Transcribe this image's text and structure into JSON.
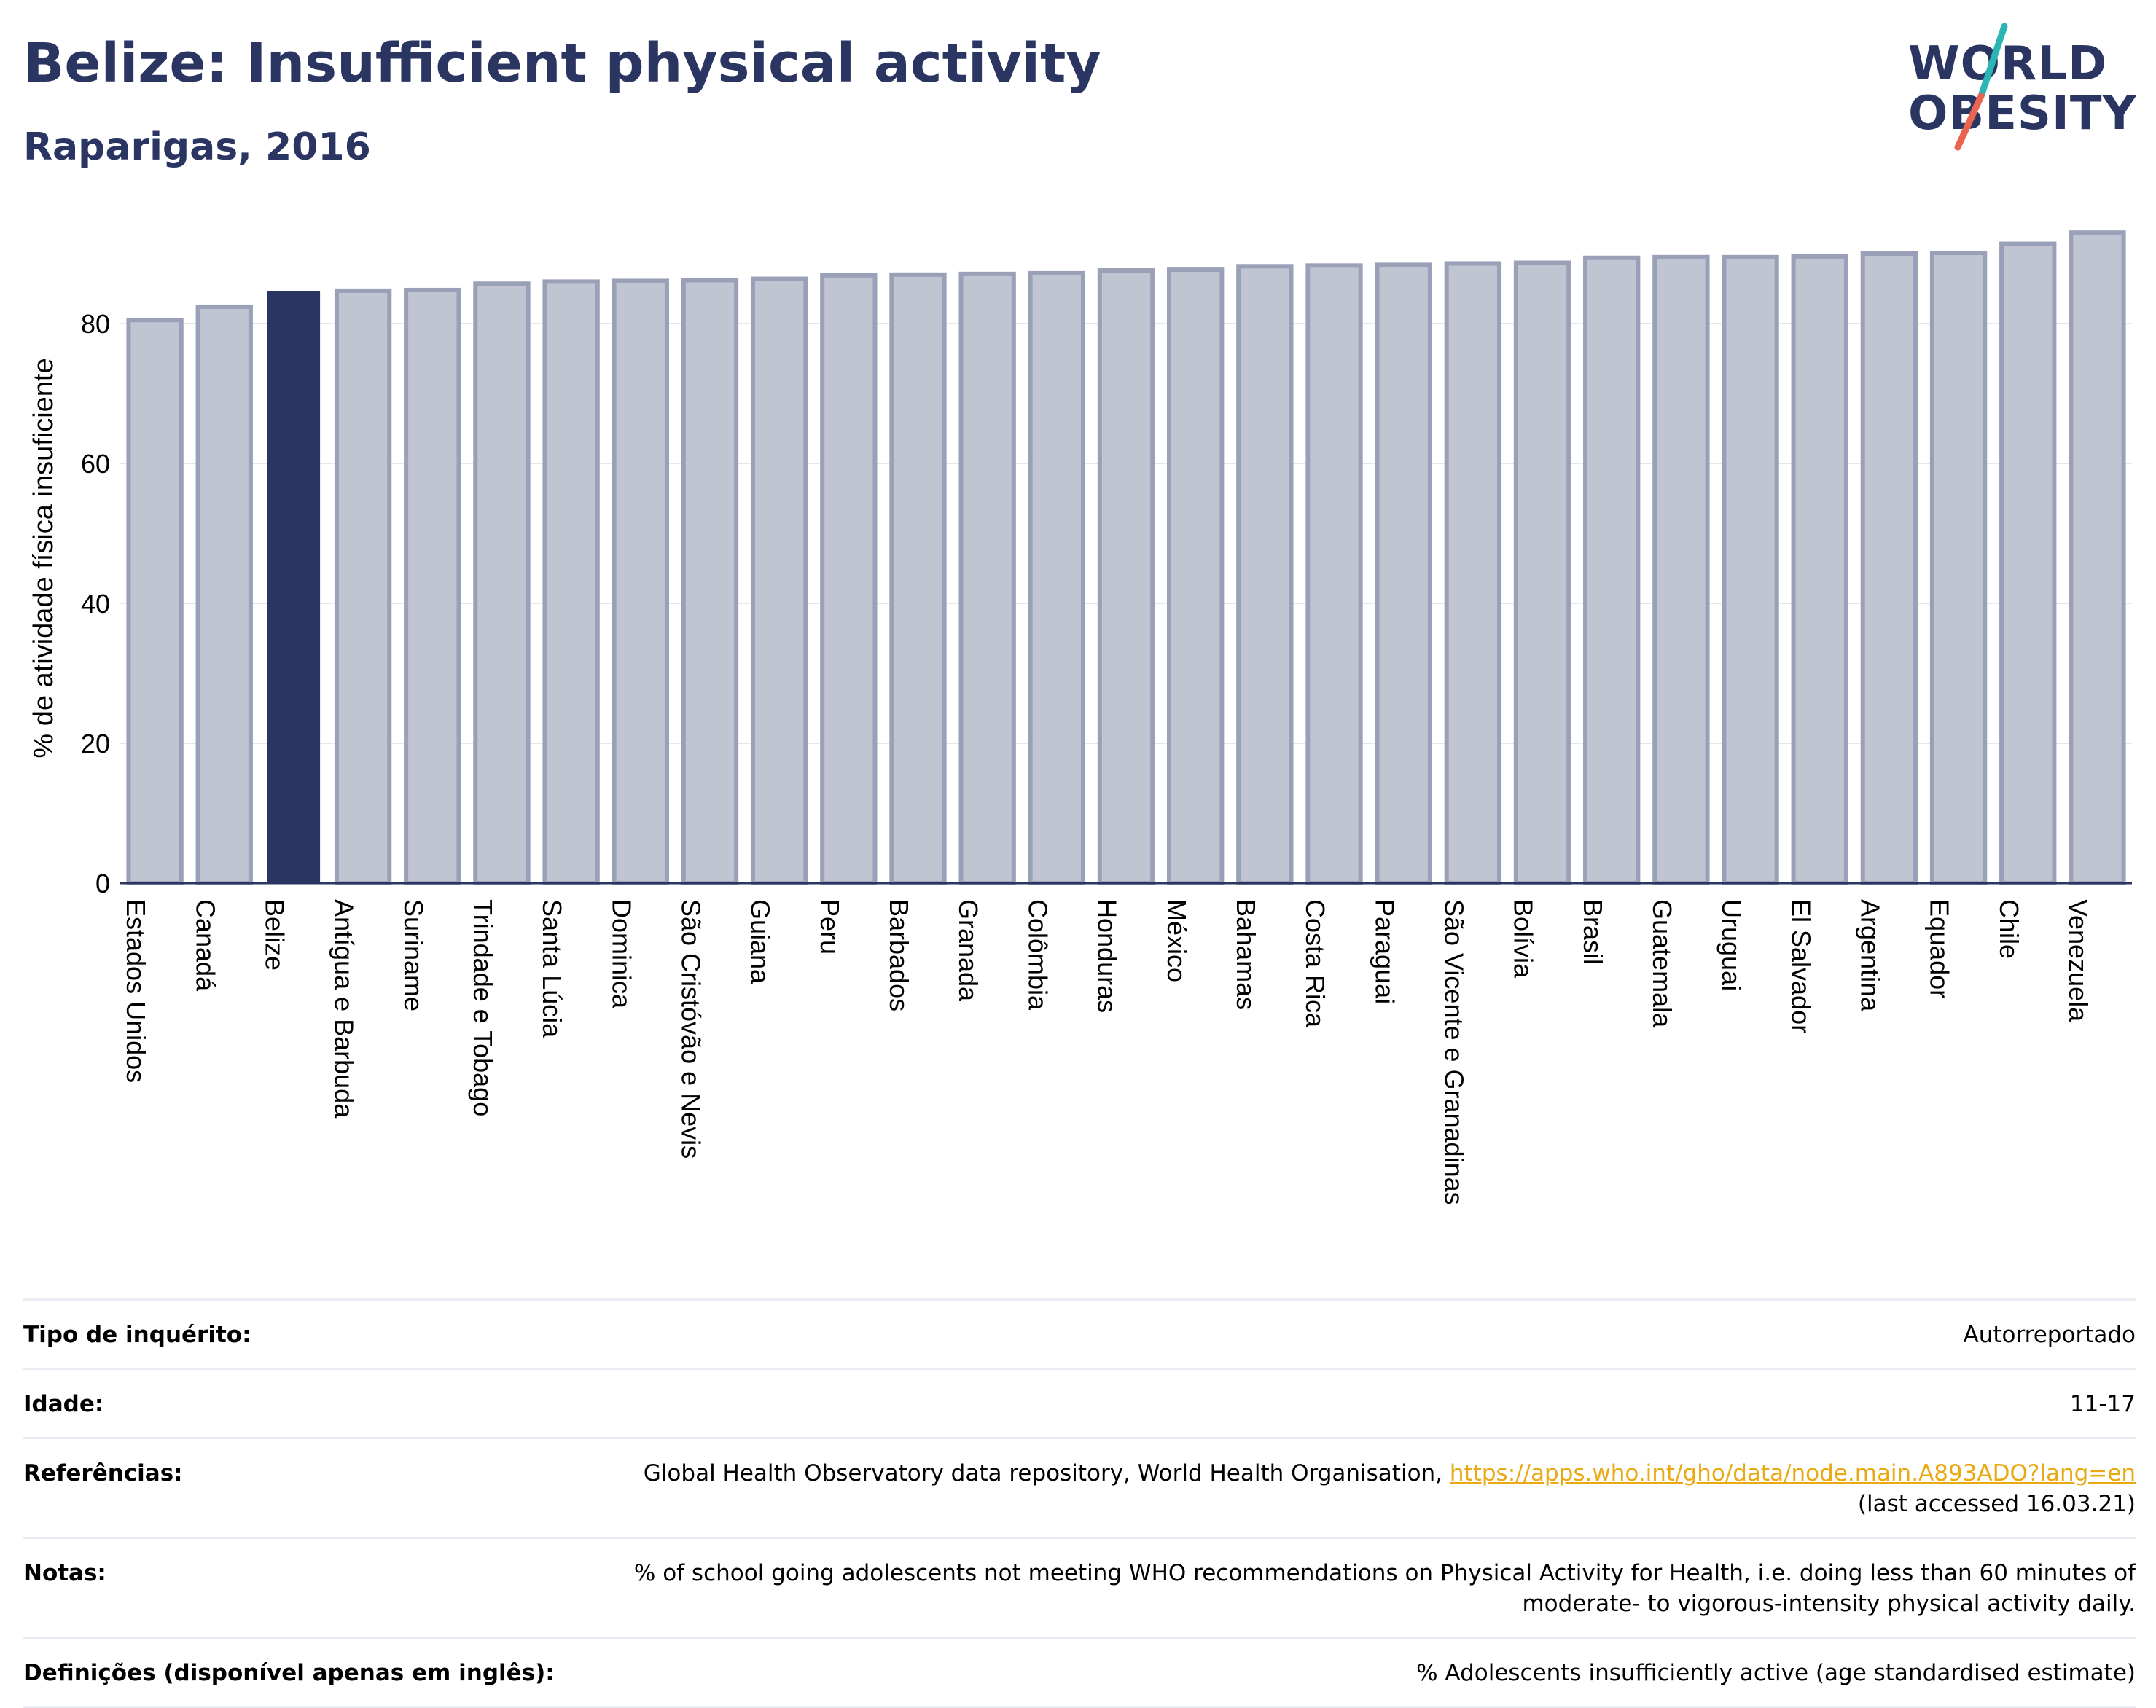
{
  "header": {
    "title": "Belize: Insufficient physical activity",
    "subtitle": "Raparigas, 2016"
  },
  "logo": {
    "text": "WORLD OBESITY",
    "line1": "WORLD",
    "line2": "OBESITY",
    "colors": {
      "text": "#2b3562",
      "slash_top": "#2bb5b5",
      "slash_bottom": "#e9654f"
    }
  },
  "chart_data": {
    "type": "bar",
    "ylabel": "% de atividade física insuficiente",
    "xlabel": "",
    "ylim": [
      0,
      95
    ],
    "yticks": [
      0,
      20,
      40,
      60,
      80
    ],
    "grid": true,
    "highlight": "Belize",
    "colors": {
      "bar": "#c1c4d1",
      "bar_border": "#9aa0b8",
      "highlight": "#2b3562",
      "grid": "#e6e6e6",
      "axis": "#2b3562"
    },
    "categories": [
      "Estados Unidos",
      "Canadá",
      "Belize",
      "Antígua e Barbuda",
      "Suriname",
      "Trindade e Tobago",
      "Santa Lúcia",
      "Dominica",
      "São Cristóvão e Nevis",
      "Guiana",
      "Peru",
      "Barbados",
      "Granada",
      "Colômbia",
      "Honduras",
      "México",
      "Bahamas",
      "Costa Rica",
      "Paraguai",
      "São Vicente e Granadinas",
      "Bolívia",
      "Brasil",
      "Guatemala",
      "Uruguai",
      "El Salvador",
      "Argentina",
      "Equador",
      "Chile",
      "Venezuela"
    ],
    "values": [
      80.5,
      82.4,
      84.6,
      84.7,
      84.8,
      85.7,
      86.0,
      86.1,
      86.2,
      86.4,
      86.9,
      87.0,
      87.1,
      87.2,
      87.6,
      87.7,
      88.2,
      88.3,
      88.4,
      88.6,
      88.7,
      89.4,
      89.5,
      89.5,
      89.6,
      90.0,
      90.1,
      91.4,
      93.0
    ]
  },
  "info": {
    "survey_label": "Tipo de inquérito:",
    "survey_value": "Autorreportado",
    "age_label": "Idade:",
    "age_value": "11-17",
    "ref_label": "Referências:",
    "ref_text": "Global Health Observatory data repository, World Health Organisation,",
    "ref_link": "https://apps.who.int/gho/data/node.main.A893ADO?lang=en",
    "ref_accessed": "(last accessed 16.03.21)",
    "notes_label": "Notas:",
    "notes_value": "% of school going adolescents not meeting WHO recommendations on Physical Activity for Health, i.e. doing less than 60 minutes of moderate- to vigorous-intensity physical activity daily.",
    "def_label": "Definições (disponível apenas em inglês):",
    "def_value": "% Adolescents insufficiently active (age standardised estimate)"
  }
}
